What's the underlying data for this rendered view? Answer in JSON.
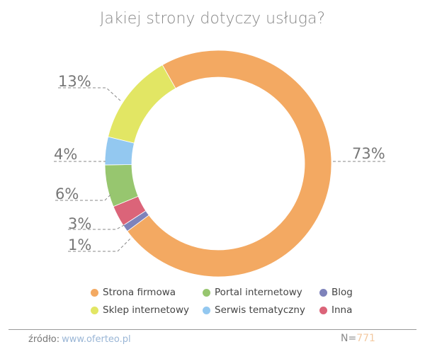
{
  "chart_data": {
    "type": "pie",
    "donut": true,
    "title": "Jakiej strony dotyczy usługa?",
    "slices": [
      {
        "name": "Strona firmowa",
        "value": 73,
        "label": "73%",
        "color": "#f3a962"
      },
      {
        "name": "Blog",
        "value": 1,
        "label": "1%",
        "color": "#7e83bb"
      },
      {
        "name": "Inna",
        "value": 3,
        "label": "3%",
        "color": "#db6479"
      },
      {
        "name": "Portal internetowy",
        "value": 6,
        "label": "6%",
        "color": "#97c66f"
      },
      {
        "name": "Serwis tematyczny",
        "value": 4,
        "label": "4%",
        "color": "#93c8f0"
      },
      {
        "name": "Sklep internetowy",
        "value": 13,
        "label": "13%",
        "color": "#e2e664"
      }
    ],
    "legend_order": [
      "Strona firmowa",
      "Portal internetowy",
      "Blog",
      "Sklep internetowy",
      "Serwis tematyczny",
      "Inna"
    ],
    "legend_placement": "bottom"
  },
  "footer": {
    "source_label": "źródło:",
    "source_link": "www.oferteo.pl",
    "n_label": "N=",
    "n_value": "771"
  }
}
